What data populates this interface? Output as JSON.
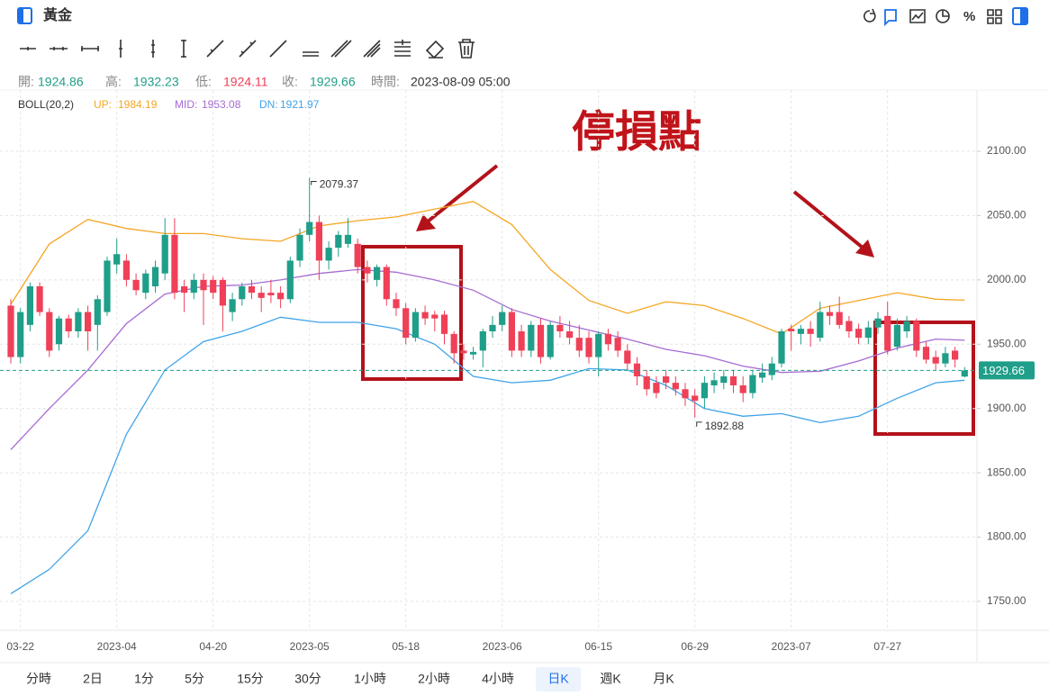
{
  "header": {
    "title": "黃金",
    "percent_icon": "%"
  },
  "info": {
    "open_label": "開:",
    "high_label": "高:",
    "low_label": "低:",
    "close_label": "收:",
    "time_label": "時間:",
    "time": "2023-08-09 05:00"
  },
  "annotation": "停損點",
  "timeframes": {
    "items": [
      "分時",
      "2日",
      "1分",
      "5分",
      "15分",
      "30分",
      "1小時",
      "2小時",
      "4小時",
      "日K",
      "週K",
      "月K"
    ],
    "active": 9
  },
  "chart_data": {
    "type": "candlestick",
    "up_color": "#1f9e89",
    "down_color": "#ef4058",
    "categories": [
      null,
      "03-22",
      null,
      null,
      null,
      null,
      null,
      null,
      null,
      null,
      null,
      "2023-04",
      null,
      null,
      null,
      null,
      null,
      null,
      null,
      null,
      null,
      "04-20",
      null,
      null,
      null,
      null,
      null,
      null,
      null,
      null,
      null,
      "2023-05",
      null,
      null,
      null,
      null,
      null,
      null,
      null,
      null,
      null,
      "05-18",
      null,
      null,
      null,
      null,
      null,
      null,
      null,
      null,
      null,
      "2023-06",
      null,
      null,
      null,
      null,
      null,
      null,
      null,
      null,
      null,
      "06-15",
      null,
      null,
      null,
      null,
      null,
      null,
      null,
      null,
      null,
      "06-29",
      null,
      null,
      null,
      null,
      null,
      null,
      null,
      null,
      null,
      "2023-07",
      null,
      null,
      null,
      null,
      null,
      null,
      null,
      null,
      null,
      "07-27",
      null,
      null,
      null,
      null,
      null,
      null,
      null,
      null
    ],
    "ohlc": [
      [
        1980,
        1985,
        1935,
        1940
      ],
      [
        1940,
        1978,
        1935,
        1975
      ],
      [
        1965,
        1998,
        1960,
        1995
      ],
      [
        1995,
        1998,
        1972,
        1975
      ],
      [
        1975,
        1978,
        1940,
        1945
      ],
      [
        1950,
        1972,
        1945,
        1970
      ],
      [
        1970,
        1973,
        1955,
        1960
      ],
      [
        1960,
        1978,
        1955,
        1975
      ],
      [
        1975,
        1980,
        1945,
        1960
      ],
      [
        1965,
        1988,
        1945,
        1985
      ],
      [
        1975,
        2018,
        1972,
        2015
      ],
      [
        2012,
        2032,
        2005,
        2020
      ],
      [
        2015,
        2020,
        1995,
        2000
      ],
      [
        2000,
        2005,
        1988,
        1992
      ],
      [
        1990,
        2008,
        1985,
        2005
      ],
      [
        1995,
        2015,
        1990,
        2010
      ],
      [
        2005,
        2048,
        2000,
        2035
      ],
      [
        2035,
        2048,
        1985,
        1990
      ],
      [
        1995,
        2000,
        1975,
        1990
      ],
      [
        1990,
        2005,
        1985,
        2000
      ],
      [
        2000,
        2005,
        1965,
        1992
      ],
      [
        2000,
        2003,
        1985,
        1990
      ],
      [
        2000,
        2002,
        1960,
        1980
      ],
      [
        1975,
        1990,
        1968,
        1985
      ],
      [
        1985,
        1998,
        1980,
        1995
      ],
      [
        1995,
        2000,
        1985,
        1990
      ],
      [
        1990,
        1995,
        1975,
        1986
      ],
      [
        1990,
        2000,
        1982,
        1988
      ],
      [
        1990,
        1995,
        1978,
        1985
      ],
      [
        1985,
        2018,
        1982,
        2015
      ],
      [
        2015,
        2040,
        2010,
        2035
      ],
      [
        2035,
        2079.37,
        2030,
        2045
      ],
      [
        2045,
        2050,
        2000,
        2015
      ],
      [
        2015,
        2030,
        2008,
        2025
      ],
      [
        2025,
        2038,
        2018,
        2035
      ],
      [
        2028,
        2048,
        2025,
        2035
      ],
      [
        2028,
        2032,
        2005,
        2010
      ],
      [
        2010,
        2015,
        1998,
        2005
      ],
      [
        2000,
        2012,
        1995,
        2010
      ],
      [
        2010,
        2012,
        1980,
        1985
      ],
      [
        1985,
        1990,
        1972,
        1978
      ],
      [
        1978,
        1982,
        1950,
        1955
      ],
      [
        1955,
        1978,
        1952,
        1975
      ],
      [
        1975,
        1980,
        1965,
        1970
      ],
      [
        1973,
        1976,
        1960,
        1970
      ],
      [
        1973,
        1976,
        1950,
        1958
      ],
      [
        1958,
        1960,
        1935,
        1943
      ],
      [
        1945,
        1950,
        1938,
        1943
      ],
      [
        1942,
        1948,
        1938,
        1944
      ],
      [
        1945,
        1962,
        1932,
        1960
      ],
      [
        1960,
        1972,
        1955,
        1965
      ],
      [
        1965,
        1980,
        1960,
        1975
      ],
      [
        1975,
        1978,
        1940,
        1945
      ],
      [
        1960,
        1965,
        1940,
        1945
      ],
      [
        1945,
        1968,
        1940,
        1965
      ],
      [
        1965,
        1970,
        1935,
        1940
      ],
      [
        1940,
        1968,
        1938,
        1965
      ],
      [
        1965,
        1972,
        1955,
        1960
      ],
      [
        1960,
        1968,
        1950,
        1955
      ],
      [
        1955,
        1965,
        1940,
        1945
      ],
      [
        1955,
        1960,
        1935,
        1940
      ],
      [
        1940,
        1960,
        1925,
        1958
      ],
      [
        1958,
        1962,
        1945,
        1950
      ],
      [
        1955,
        1960,
        1940,
        1945
      ],
      [
        1945,
        1950,
        1930,
        1935
      ],
      [
        1935,
        1940,
        1918,
        1925
      ],
      [
        1925,
        1930,
        1910,
        1915
      ],
      [
        1920,
        1925,
        1908,
        1912
      ],
      [
        1925,
        1930,
        1915,
        1920
      ],
      [
        1920,
        1925,
        1910,
        1915
      ],
      [
        1915,
        1920,
        1902,
        1908
      ],
      [
        1910,
        1915,
        1892.88,
        1906
      ],
      [
        1908,
        1925,
        1900,
        1920
      ],
      [
        1918,
        1928,
        1912,
        1922
      ],
      [
        1920,
        1930,
        1915,
        1925
      ],
      [
        1925,
        1930,
        1912,
        1918
      ],
      [
        1918,
        1925,
        1905,
        1912
      ],
      [
        1912,
        1930,
        1908,
        1926
      ],
      [
        1924,
        1935,
        1920,
        1928
      ],
      [
        1926,
        1940,
        1922,
        1935
      ],
      [
        1935,
        1962,
        1932,
        1960
      ],
      [
        1962,
        1965,
        1945,
        1960
      ],
      [
        1958,
        1965,
        1950,
        1962
      ],
      [
        1962,
        1968,
        1948,
        1958
      ],
      [
        1955,
        1983,
        1952,
        1975
      ],
      [
        1975,
        1980,
        1965,
        1972
      ],
      [
        1975,
        1987,
        1962,
        1965
      ],
      [
        1968,
        1972,
        1955,
        1960
      ],
      [
        1962,
        1966,
        1950,
        1955
      ],
      [
        1955,
        1968,
        1950,
        1963
      ],
      [
        1963,
        1975,
        1958,
        1970
      ],
      [
        1972,
        1983,
        1942,
        1945
      ],
      [
        1948,
        1970,
        1945,
        1965
      ],
      [
        1960,
        1972,
        1955,
        1968
      ],
      [
        1968,
        1970,
        1940,
        1945
      ],
      [
        1948,
        1952,
        1935,
        1938
      ],
      [
        1940,
        1945,
        1930,
        1935
      ],
      [
        1935,
        1948,
        1932,
        1943
      ],
      [
        1945,
        1948,
        1932,
        1938
      ],
      [
        1924.86,
        1932.23,
        1924.11,
        1929.66
      ]
    ],
    "indicator": {
      "name": "BOLL(20,2)",
      "lines": [
        {
          "name": "UP:",
          "color": "#f5a623",
          "x": [
            0,
            4,
            8,
            12,
            16,
            20,
            24,
            28,
            32,
            36,
            40,
            44,
            48,
            52,
            56,
            60,
            64,
            68,
            72,
            76,
            80,
            84,
            88,
            92,
            96,
            99
          ],
          "values": [
            1981,
            2028,
            2047,
            2040,
            2036,
            2036,
            2032,
            2030,
            2042,
            2046,
            2049,
            2055,
            2061,
            2043,
            2008,
            1984,
            1974,
            1983,
            1980,
            1970,
            1958,
            1978,
            1984,
            1990,
            1985,
            1984.19
          ]
        },
        {
          "name": "MID:",
          "color": "#a66bd3",
          "x": [
            0,
            4,
            8,
            12,
            16,
            20,
            24,
            28,
            32,
            36,
            40,
            44,
            48,
            52,
            56,
            60,
            64,
            68,
            72,
            76,
            80,
            84,
            88,
            92,
            96,
            99
          ],
          "values": [
            1868,
            1900,
            1930,
            1966,
            1989,
            1995,
            1996,
            2000,
            2005,
            2008,
            2006,
            2000,
            1992,
            1977,
            1968,
            1961,
            1954,
            1946,
            1941,
            1933,
            1928,
            1929,
            1937,
            1947,
            1954,
            1953.08
          ]
        },
        {
          "name": "DN:",
          "color": "#3fa4e8",
          "x": [
            0,
            4,
            8,
            12,
            16,
            20,
            24,
            28,
            32,
            36,
            40,
            44,
            48,
            52,
            56,
            60,
            64,
            68,
            72,
            76,
            80,
            84,
            88,
            92,
            96,
            99
          ],
          "values": [
            1756,
            1775,
            1805,
            1880,
            1930,
            1952,
            1960,
            1971,
            1967,
            1967,
            1962,
            1950,
            1925,
            1920,
            1922,
            1931,
            1930,
            1918,
            1900,
            1894,
            1896,
            1889,
            1894,
            1908,
            1920,
            1921.97
          ]
        }
      ]
    },
    "ylim": [
      1727.6,
      2147.6
    ],
    "yticks": [
      {
        "value": 1750,
        "label": "1750.00"
      },
      {
        "value": 1800,
        "label": "1800.00"
      },
      {
        "value": 1850,
        "label": "1850.00"
      },
      {
        "value": 1900,
        "label": "1900.00"
      },
      {
        "value": 1950,
        "label": "1950.00"
      },
      {
        "value": 2000,
        "label": "2000.00"
      },
      {
        "value": 2050,
        "label": "2050.00"
      },
      {
        "value": 2100,
        "label": "2100.00"
      }
    ],
    "grid": true
  }
}
